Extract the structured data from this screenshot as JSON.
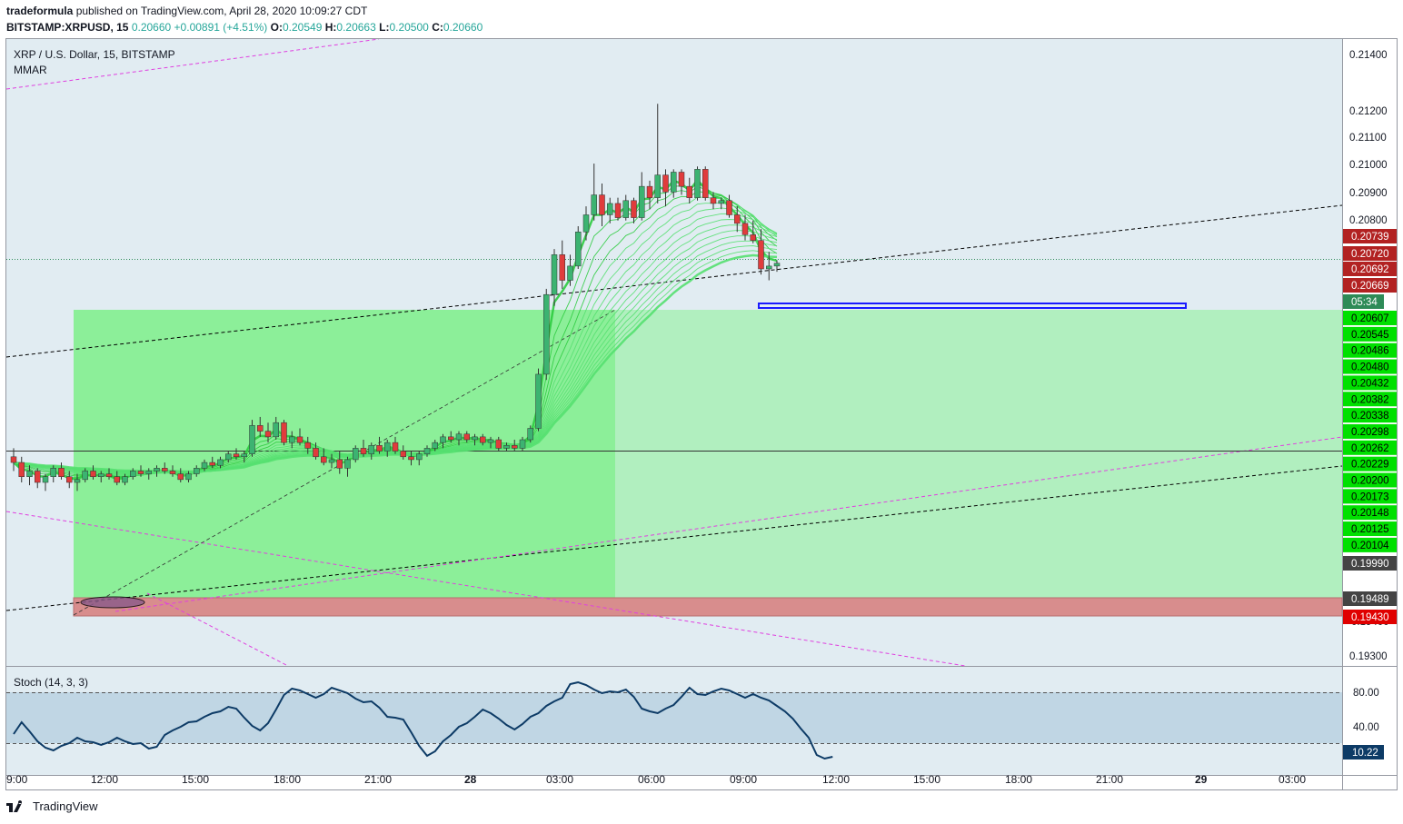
{
  "header": {
    "author": "tradeformula",
    "published": " published on TradingView.com, April 28, 2020 10:09:27 CDT",
    "symbol": "BITSTAMP:XRPUSD, 15",
    "last": "0.20660",
    "change": "+0.00891 (+4.51%)",
    "o_label": "O:",
    "o": "0.20549",
    "h_label": "H:",
    "h": "0.20663",
    "l_label": "L:",
    "l": "0.20500",
    "c_label": "C:",
    "c": "0.20660"
  },
  "chart_title": "XRP / U.S. Dollar, 15, BITSTAMP",
  "indicator_name": "MMAR",
  "stoch_label": "Stoch (14, 3, 3)",
  "footer_brand": "TradingView",
  "countdown": "05:34",
  "colors": {
    "bg": "#e1ecf2",
    "up": "#26a69a",
    "candle_up": "#3cb371",
    "candle_down": "#e03c3c",
    "long_zone": "#7df08a",
    "long_zone_light": "#a8f0b6",
    "stop_zone": "#d88d8d",
    "stoch_line": "#0d3b66",
    "stoch_band": "#c0d6e4"
  },
  "price_axis": {
    "ticks": [
      "0.21400",
      "0.21200",
      "0.21100",
      "0.21000",
      "0.20900",
      "0.20800",
      "0.19300"
    ],
    "red_labels": [
      "0.20739",
      "0.20720",
      "0.20692",
      "0.20669"
    ],
    "green_labels": [
      "0.20607",
      "0.20545",
      "0.20486",
      "0.20480",
      "0.20432",
      "0.20382",
      "0.20338",
      "0.20298",
      "0.20262",
      "0.20229",
      "0.20200",
      "0.20173",
      "0.20148",
      "0.20125",
      "0.20104"
    ],
    "dark_labels": [
      "0.19990",
      "0.19489"
    ],
    "stop_label": "0.19430",
    "hidden_label": "0.19400"
  },
  "stoch_axis": {
    "ticks": [
      "80.00",
      "40.00"
    ],
    "current": "10.22"
  },
  "time_axis": {
    "labels": [
      "9:00",
      "12:00",
      "15:00",
      "18:00",
      "21:00",
      "28",
      "03:00",
      "06:00",
      "09:00",
      "12:00",
      "15:00",
      "18:00",
      "21:00",
      "29",
      "03:00"
    ]
  },
  "chart_data": {
    "type": "candlestick",
    "title": "XRP / U.S. Dollar, 15, BITSTAMP",
    "y_range": [
      0.1925,
      0.2146
    ],
    "position_tool": {
      "entry": 0.20607,
      "take_profit_top": 0.20607,
      "long_zone_bottom": 0.19489,
      "stop_top": 0.19489,
      "stop_bottom": 0.1943
    },
    "support_level": 0.20262,
    "candles": [
      [
        0.1999,
        0.2002,
        0.1994,
        0.1997
      ],
      [
        0.1997,
        0.1999,
        0.199,
        0.1992
      ],
      [
        0.1992,
        0.1996,
        0.1989,
        0.1994
      ],
      [
        0.1994,
        0.1995,
        0.1988,
        0.199
      ],
      [
        0.199,
        0.1993,
        0.1987,
        0.1992
      ],
      [
        0.1992,
        0.1996,
        0.199,
        0.1995
      ],
      [
        0.1995,
        0.1997,
        0.1991,
        0.1992
      ],
      [
        0.1992,
        0.1994,
        0.1988,
        0.199
      ],
      [
        0.199,
        0.1993,
        0.1987,
        0.1991
      ],
      [
        0.1991,
        0.1995,
        0.199,
        0.1994
      ],
      [
        0.1994,
        0.1996,
        0.1991,
        0.1992
      ],
      [
        0.1992,
        0.1994,
        0.199,
        0.1993
      ],
      [
        0.1993,
        0.1995,
        0.1991,
        0.1992
      ],
      [
        0.1992,
        0.1994,
        0.1989,
        0.199
      ],
      [
        0.199,
        0.1993,
        0.1989,
        0.1992
      ],
      [
        0.1992,
        0.1995,
        0.1991,
        0.1994
      ],
      [
        0.1994,
        0.1996,
        0.1992,
        0.1993
      ],
      [
        0.1993,
        0.1995,
        0.1991,
        0.1994
      ],
      [
        0.1994,
        0.1996,
        0.1992,
        0.1995
      ],
      [
        0.1995,
        0.1997,
        0.1993,
        0.1994
      ],
      [
        0.1994,
        0.1996,
        0.1992,
        0.1993
      ],
      [
        0.1993,
        0.1995,
        0.199,
        0.1991
      ],
      [
        0.1991,
        0.1994,
        0.199,
        0.1993
      ],
      [
        0.1993,
        0.1996,
        0.1992,
        0.1995
      ],
      [
        0.1995,
        0.1998,
        0.1994,
        0.1997
      ],
      [
        0.1997,
        0.1999,
        0.1995,
        0.1996
      ],
      [
        0.1996,
        0.1999,
        0.1995,
        0.1998
      ],
      [
        0.1998,
        0.2001,
        0.1997,
        0.2
      ],
      [
        0.2,
        0.2002,
        0.1998,
        0.1999
      ],
      [
        0.1999,
        0.2001,
        0.1997,
        0.2
      ],
      [
        0.2,
        0.2012,
        0.1999,
        0.201
      ],
      [
        0.201,
        0.2013,
        0.2006,
        0.2008
      ],
      [
        0.2008,
        0.2011,
        0.2004,
        0.2006
      ],
      [
        0.2006,
        0.2013,
        0.2005,
        0.2011
      ],
      [
        0.2011,
        0.2012,
        0.2003,
        0.2004
      ],
      [
        0.2004,
        0.2008,
        0.2002,
        0.2006
      ],
      [
        0.2006,
        0.2009,
        0.2003,
        0.2004
      ],
      [
        0.2004,
        0.2006,
        0.2,
        0.2002
      ],
      [
        0.2002,
        0.2004,
        0.1998,
        0.1999
      ],
      [
        0.1999,
        0.2002,
        0.1996,
        0.1997
      ],
      [
        0.1997,
        0.2,
        0.1995,
        0.1998
      ],
      [
        0.1998,
        0.2001,
        0.1993,
        0.1995
      ],
      [
        0.1995,
        0.1999,
        0.1992,
        0.1998
      ],
      [
        0.1998,
        0.2003,
        0.1997,
        0.2002
      ],
      [
        0.2002,
        0.2005,
        0.1999,
        0.2
      ],
      [
        0.2,
        0.2004,
        0.1998,
        0.2003
      ],
      [
        0.2003,
        0.2006,
        0.2,
        0.2001
      ],
      [
        0.2001,
        0.2005,
        0.1999,
        0.2004
      ],
      [
        0.2004,
        0.2006,
        0.2,
        0.2001
      ],
      [
        0.2001,
        0.2003,
        0.1998,
        0.1999
      ],
      [
        0.1999,
        0.2001,
        0.1996,
        0.1998
      ],
      [
        0.1998,
        0.2001,
        0.1996,
        0.2
      ],
      [
        0.2,
        0.2003,
        0.1999,
        0.2002
      ],
      [
        0.2002,
        0.2005,
        0.2001,
        0.2004
      ],
      [
        0.2004,
        0.2007,
        0.2002,
        0.2006
      ],
      [
        0.2006,
        0.2008,
        0.2004,
        0.2005
      ],
      [
        0.2005,
        0.2008,
        0.2003,
        0.2007
      ],
      [
        0.2007,
        0.2008,
        0.2004,
        0.2005
      ],
      [
        0.2005,
        0.2007,
        0.2003,
        0.2006
      ],
      [
        0.2006,
        0.2007,
        0.2003,
        0.2004
      ],
      [
        0.2004,
        0.2006,
        0.2002,
        0.2005
      ],
      [
        0.2005,
        0.2006,
        0.2001,
        0.2002
      ],
      [
        0.2002,
        0.2004,
        0.2001,
        0.2003
      ],
      [
        0.2003,
        0.2005,
        0.2001,
        0.2002
      ],
      [
        0.2002,
        0.2006,
        0.2001,
        0.2005
      ],
      [
        0.2005,
        0.201,
        0.2004,
        0.2009
      ],
      [
        0.2009,
        0.203,
        0.2008,
        0.2028
      ],
      [
        0.2028,
        0.2058,
        0.2026,
        0.2056
      ],
      [
        0.2056,
        0.2072,
        0.2052,
        0.207
      ],
      [
        0.207,
        0.2075,
        0.2058,
        0.2061
      ],
      [
        0.2061,
        0.207,
        0.2059,
        0.2066
      ],
      [
        0.2066,
        0.208,
        0.2065,
        0.2078
      ],
      [
        0.2078,
        0.2087,
        0.2075,
        0.2084
      ],
      [
        0.2084,
        0.2102,
        0.2082,
        0.2091
      ],
      [
        0.2091,
        0.2095,
        0.208,
        0.2084
      ],
      [
        0.2084,
        0.209,
        0.2081,
        0.2088
      ],
      [
        0.2088,
        0.209,
        0.2082,
        0.2083
      ],
      [
        0.2083,
        0.2091,
        0.2082,
        0.2089
      ],
      [
        0.2089,
        0.209,
        0.2081,
        0.2083
      ],
      [
        0.2083,
        0.2099,
        0.2082,
        0.2094
      ],
      [
        0.2094,
        0.2096,
        0.2086,
        0.209
      ],
      [
        0.209,
        0.2123,
        0.2088,
        0.2098
      ],
      [
        0.2098,
        0.21,
        0.2087,
        0.2092
      ],
      [
        0.2092,
        0.21,
        0.209,
        0.2099
      ],
      [
        0.2099,
        0.21,
        0.2091,
        0.2094
      ],
      [
        0.2094,
        0.2097,
        0.2088,
        0.209
      ],
      [
        0.209,
        0.2101,
        0.2089,
        0.21
      ],
      [
        0.21,
        0.2101,
        0.2089,
        0.209
      ],
      [
        0.209,
        0.2092,
        0.2086,
        0.2088
      ],
      [
        0.2088,
        0.209,
        0.2086,
        0.2089
      ],
      [
        0.2089,
        0.2091,
        0.2083,
        0.2084
      ],
      [
        0.2084,
        0.2087,
        0.2078,
        0.2081
      ],
      [
        0.2081,
        0.2084,
        0.2075,
        0.2077
      ],
      [
        0.2077,
        0.2082,
        0.2074,
        0.2075
      ],
      [
        0.2075,
        0.2079,
        0.2063,
        0.2065
      ],
      [
        0.2065,
        0.2071,
        0.2061,
        0.2066
      ],
      [
        0.2066,
        0.2068,
        0.2064,
        0.2067
      ]
    ],
    "stochastic": {
      "k": [
        35,
        48,
        38,
        27,
        20,
        17,
        22,
        25,
        31,
        27,
        26,
        23,
        26,
        31,
        27,
        24,
        25,
        19,
        21,
        34,
        39,
        43,
        48,
        49,
        54,
        58,
        60,
        65,
        63,
        53,
        44,
        39,
        47,
        62,
        78,
        85,
        83,
        79,
        75,
        79,
        86,
        83,
        80,
        74,
        70,
        71,
        64,
        54,
        53,
        51,
        37,
        22,
        11,
        16,
        27,
        34,
        43,
        47,
        54,
        62,
        58,
        52,
        45,
        40,
        46,
        54,
        58,
        66,
        71,
        75,
        90,
        92,
        89,
        84,
        80,
        82,
        81,
        84,
        76,
        63,
        60,
        58,
        63,
        67,
        76,
        86,
        79,
        78,
        82,
        85,
        83,
        79,
        75,
        79,
        75,
        72,
        66,
        60,
        52,
        41,
        31,
        12,
        8,
        10
      ],
      "upper": 80,
      "lower": 20,
      "y_range": [
        0,
        100
      ]
    }
  }
}
